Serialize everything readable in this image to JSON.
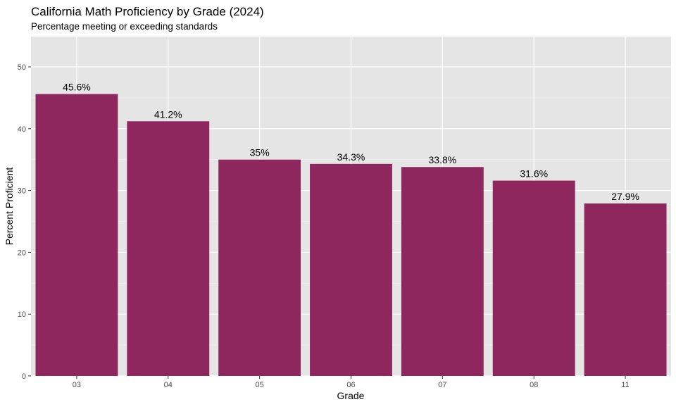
{
  "chart_data": {
    "type": "bar",
    "title": "California Math Proficiency by Grade (2024)",
    "subtitle": "Percentage meeting or exceeding standards",
    "xlabel": "Grade",
    "ylabel": "Percent Proficient",
    "categories": [
      "03",
      "04",
      "05",
      "06",
      "07",
      "08",
      "11"
    ],
    "values": [
      45.6,
      41.2,
      35,
      34.3,
      33.8,
      31.6,
      27.9
    ],
    "data_labels": [
      "45.6%",
      "41.2%",
      "35%",
      "34.3%",
      "33.8%",
      "31.6%",
      "27.9%"
    ],
    "yticks": [
      0,
      10,
      20,
      30,
      40,
      50
    ],
    "ylim": [
      0,
      54.9
    ],
    "grid": true,
    "bar_color": "#8E275E",
    "panel_background": "#E5E5E5"
  }
}
